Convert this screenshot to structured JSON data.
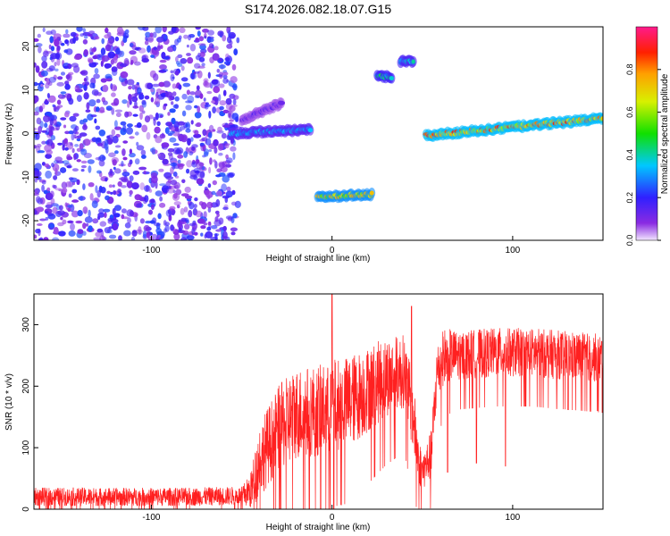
{
  "figure_title": "S174.2026.082.18.07.G15",
  "chart_data": [
    {
      "type": "heatmap",
      "xlabel": "Height of straight line (km)",
      "ylabel": "Frequency (Hz)",
      "xlim": [
        -165,
        150
      ],
      "ylim": [
        -24.5,
        24.5
      ],
      "xticks": [
        -100,
        0,
        100
      ],
      "yticks": [
        -20,
        -10,
        0,
        10,
        20
      ],
      "colorbar": {
        "label": "Normalized spectral amplitude",
        "range": [
          0.0,
          1.0
        ],
        "ticks": [
          "0.0",
          "0.2",
          "0.4",
          "0.6",
          "0.8"
        ],
        "colormap": "rainbow (purple-blue-cyan-green-yellow-red-magenta)"
      },
      "features": [
        {
          "x": [
            -165,
            -52
          ],
          "y": [
            -24.5,
            24.5
          ],
          "amplitude": 0.05,
          "kind": "noise"
        },
        {
          "x": [
            -56,
            -12
          ],
          "y_start": 0,
          "y_end": 1,
          "amplitude": 0.35,
          "kind": "ridge"
        },
        {
          "x": [
            -50,
            -28
          ],
          "y_start": 3,
          "y_end": 7,
          "amplitude": 0.15,
          "kind": "ridge"
        },
        {
          "x": [
            -8,
            22
          ],
          "y_start": -14.5,
          "y_end": -14,
          "amplitude": 0.75,
          "kind": "ridge"
        },
        {
          "x": [
            25,
            33
          ],
          "y_start": 13,
          "y_end": 13,
          "amplitude": 0.45,
          "kind": "ridge"
        },
        {
          "x": [
            38,
            45
          ],
          "y_start": 16.5,
          "y_end": 16.5,
          "amplitude": 0.4,
          "kind": "ridge"
        },
        {
          "x": [
            52,
            150
          ],
          "y_start": -0.5,
          "y_end": 3.5,
          "amplitude": 0.85,
          "kind": "ridge"
        }
      ]
    },
    {
      "type": "line",
      "xlabel": "Height of straight line (km)",
      "ylabel": "SNR (10 * v/v)",
      "xlim": [
        -165,
        150
      ],
      "ylim": [
        0,
        350
      ],
      "xticks": [
        -100,
        0,
        100
      ],
      "yticks": [
        0,
        100,
        200,
        300
      ],
      "color": "#ff2020",
      "series": [
        {
          "x": [
            -165,
            -120,
            -80,
            -50,
            -45,
            -40,
            -30,
            -20,
            -10,
            -2,
            0,
            2,
            10,
            20,
            30,
            40,
            45,
            48,
            50,
            55,
            58,
            62,
            70,
            90,
            110,
            130,
            150
          ],
          "base": [
            20,
            20,
            20,
            22,
            30,
            80,
            130,
            155,
            160,
            160,
            170,
            170,
            175,
            195,
            215,
            225,
            150,
            80,
            60,
            90,
            220,
            250,
            250,
            255,
            255,
            250,
            245
          ],
          "amplitude": [
            15,
            15,
            15,
            15,
            30,
            60,
            70,
            75,
            75,
            75,
            75,
            75,
            75,
            70,
            65,
            60,
            60,
            40,
            30,
            40,
            50,
            45,
            40,
            40,
            40,
            40,
            40
          ],
          "spikes": [
            {
              "x": 0,
              "y": 350
            },
            {
              "x": -1,
              "y": 0
            },
            {
              "x": 1,
              "y": 0
            },
            {
              "x": 44,
              "y": 330
            },
            {
              "x": 80,
              "y": 75
            },
            {
              "x": 96,
              "y": 70
            },
            {
              "x": 147,
              "y": 160
            },
            {
              "x": 64,
              "y": 60
            }
          ]
        }
      ]
    }
  ]
}
